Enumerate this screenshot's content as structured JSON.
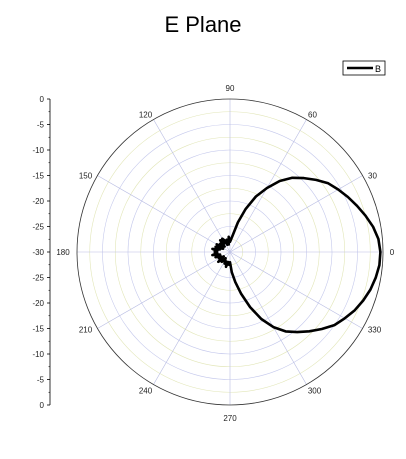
{
  "chart_data": {
    "type": "polar-line",
    "title": "E Plane",
    "radial_axis": {
      "range": [
        -30,
        0
      ],
      "ticks_outer_to_center": [
        0,
        -5,
        -10,
        -15,
        -20,
        -25,
        -30
      ],
      "tick_labels_left": [
        "0",
        "-5",
        "-10",
        "-15",
        "-20",
        "-25",
        "-30",
        "-25",
        "-20",
        "-15",
        "-10",
        "-5",
        "0"
      ]
    },
    "angular_axis": {
      "labels": [
        "0",
        "30",
        "60",
        "90",
        "120",
        "150",
        "180",
        "210",
        "240",
        "270",
        "300",
        "330"
      ],
      "grid": true
    },
    "legend": {
      "position": "top-right",
      "entries": [
        "B"
      ]
    },
    "series": [
      {
        "name": "B",
        "color": "#000000",
        "angle_deg": [
          0,
          5,
          10,
          15,
          20,
          25,
          30,
          35,
          40,
          45,
          50,
          55,
          60,
          65,
          70,
          75,
          80,
          85,
          90,
          95,
          100,
          105,
          110,
          115,
          120,
          125,
          130,
          135,
          140,
          145,
          150,
          155,
          160,
          165,
          170,
          175,
          180,
          185,
          190,
          195,
          200,
          205,
          210,
          215,
          220,
          225,
          230,
          235,
          240,
          245,
          250,
          255,
          260,
          265,
          270,
          275,
          280,
          285,
          290,
          295,
          300,
          305,
          310,
          315,
          320,
          325,
          330,
          335,
          340,
          345,
          350,
          355
        ],
        "r_db": [
          -0.5,
          -0.8,
          -1.5,
          -2.5,
          -3.5,
          -4.5,
          -5.5,
          -6.5,
          -8,
          -9.5,
          -11,
          -13,
          -15.5,
          -18,
          -21,
          -24,
          -26.5,
          -27.5,
          -28,
          -27,
          -28.5,
          -27.5,
          -28.5,
          -27.5,
          -27,
          -28,
          -27,
          -28.5,
          -27.5,
          -28,
          -27,
          -28.5,
          -27,
          -28,
          -26.5,
          -27.5,
          -27,
          -27.5,
          -26.5,
          -28,
          -27,
          -28,
          -27.5,
          -28.5,
          -27,
          -28,
          -27.5,
          -28.5,
          -28,
          -27.5,
          -28,
          -27,
          -28,
          -27.5,
          -28,
          -26,
          -24,
          -21.5,
          -18.5,
          -15.5,
          -13,
          -11,
          -9.5,
          -8,
          -6.5,
          -5,
          -4,
          -3,
          -2.2,
          -1.5,
          -1,
          -0.6
        ]
      }
    ]
  }
}
